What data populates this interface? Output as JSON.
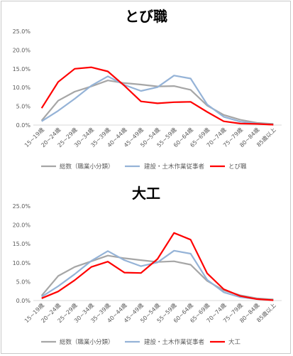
{
  "chart_data": [
    {
      "type": "line",
      "title": "とび職",
      "categories": [
        "15~19歳",
        "20~24歳",
        "25~29歳",
        "30~34歳",
        "35~39歳",
        "40~44歳",
        "45~49歳",
        "50~54歳",
        "55~59歳",
        "60~64歳",
        "65~69歳",
        "70~74歳",
        "75~79歳",
        "80~84歳",
        "85歳以上"
      ],
      "ylim": [
        0,
        25
      ],
      "yticks": [
        "0.0%",
        "5.0%",
        "10.0%",
        "15.0%",
        "20.0%",
        "25.0%"
      ],
      "grid": false,
      "legend": "bottom",
      "series": [
        {
          "name": "総数（職業小分類）",
          "color": "#a6a6a6",
          "values": [
            1.2,
            6.5,
            8.9,
            10.3,
            11.9,
            11.2,
            10.8,
            10.3,
            10.4,
            9.4,
            5.2,
            2.7,
            1.4,
            0.6,
            0.3
          ]
        },
        {
          "name": "建設・土木作業従事者",
          "color": "#95b3d7",
          "values": [
            1.0,
            3.8,
            7.0,
            10.5,
            13.0,
            10.7,
            9.1,
            10.1,
            13.2,
            12.4,
            5.5,
            2.2,
            0.9,
            0.4,
            0.1
          ]
        },
        {
          "name": "とび職",
          "color": "#ff0000",
          "values": [
            4.5,
            11.5,
            15.0,
            15.4,
            14.3,
            10.5,
            6.3,
            5.8,
            6.1,
            6.2,
            3.5,
            1.0,
            0.4,
            0.3,
            0.1
          ]
        }
      ]
    },
    {
      "type": "line",
      "title": "大工",
      "categories": [
        "15~19歳",
        "20~24歳",
        "25~29歳",
        "30~34歳",
        "35~39歳",
        "40~44歳",
        "45~49歳",
        "50~54歳",
        "55~59歳",
        "60~64歳",
        "65~69歳",
        "70~74歳",
        "75~79歳",
        "80~84歳",
        "85歳以上"
      ],
      "ylim": [
        0,
        25
      ],
      "yticks": [
        "0.0%",
        "5.0%",
        "10.0%",
        "15.0%",
        "20.0%",
        "25.0%"
      ],
      "grid": false,
      "legend": "bottom",
      "series": [
        {
          "name": "総数（職業小分類）",
          "color": "#a6a6a6",
          "values": [
            1.3,
            6.5,
            8.9,
            10.4,
            11.9,
            11.2,
            10.7,
            10.2,
            10.4,
            9.5,
            5.2,
            2.7,
            1.4,
            0.6,
            0.3
          ]
        },
        {
          "name": "建設・土木作業従事者",
          "color": "#95b3d7",
          "values": [
            1.0,
            3.8,
            7.0,
            10.5,
            13.1,
            10.7,
            9.1,
            10.1,
            13.2,
            12.4,
            5.5,
            2.2,
            0.9,
            0.4,
            0.1
          ]
        },
        {
          "name": "大工",
          "color": "#ff0000",
          "values": [
            0.6,
            2.4,
            5.4,
            8.9,
            10.3,
            7.4,
            7.3,
            11.0,
            17.9,
            16.1,
            7.2,
            3.0,
            1.2,
            0.4,
            0.1
          ]
        }
      ]
    }
  ]
}
